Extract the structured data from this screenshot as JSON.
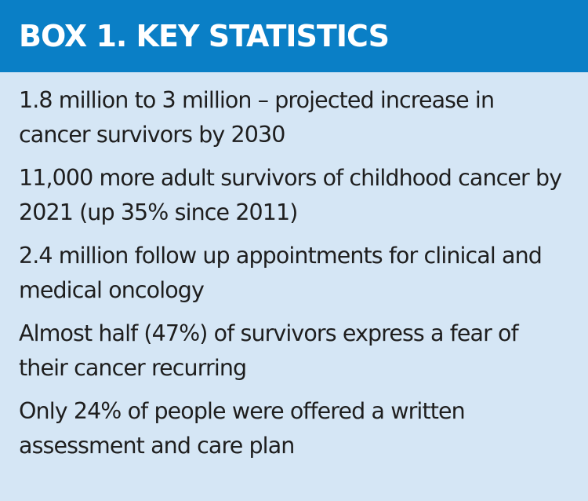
{
  "box": {
    "title": "BOX 1. KEY STATISTICS",
    "header_color": "#0a7fc6",
    "background_color": "#d5e6f5",
    "items": [
      "1.8 million to 3 million – projected increase in cancer survivors by 2030",
      "11,000 more adult survivors of childhood cancer by 2021 (up 35% since 2011)",
      "2.4 million follow up appointments for clinical and medical oncology",
      "Almost half (47%) of survivors express a fear of their cancer recurring",
      "Only 24% of people were offered a written assessment and care plan"
    ]
  }
}
